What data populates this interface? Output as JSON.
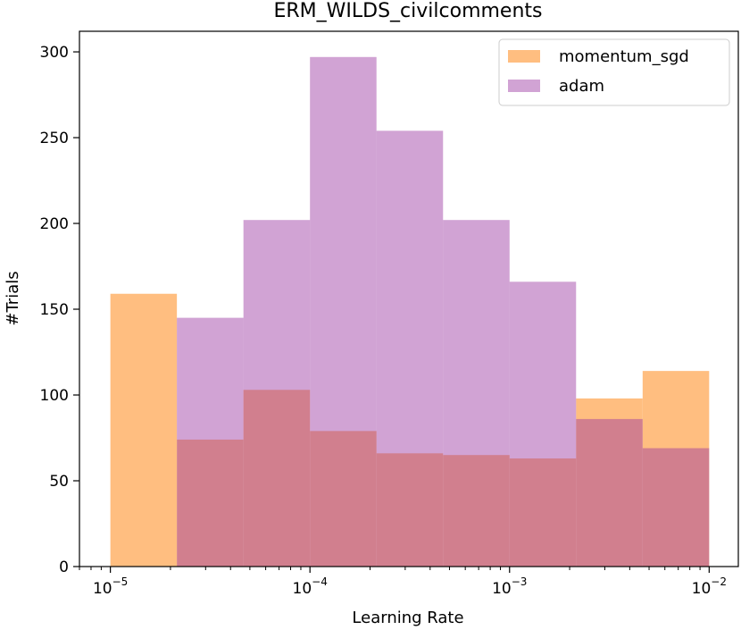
{
  "chart_data": {
    "type": "bar",
    "title": "ERM_WILDS_civilcomments",
    "xlabel": "Learning Rate",
    "ylabel": "#Trials",
    "xscale": "log",
    "xlim": [
      7e-06,
      0.014
    ],
    "ylim": [
      0,
      312
    ],
    "bin_edges": [
      1e-05,
      2.154e-05,
      4.642e-05,
      0.0001,
      0.0002154,
      0.0004642,
      0.001,
      0.002154,
      0.004642,
      0.01
    ],
    "x_ticks": [
      {
        "value": 1e-05,
        "base": "10",
        "exp": "−5"
      },
      {
        "value": 0.0001,
        "base": "10",
        "exp": "−4"
      },
      {
        "value": 0.001,
        "base": "10",
        "exp": "−3"
      },
      {
        "value": 0.01,
        "base": "10",
        "exp": "−2"
      }
    ],
    "y_ticks": [
      0,
      50,
      100,
      150,
      200,
      250,
      300
    ],
    "series": [
      {
        "name": "momentum_sgd",
        "color": "#ffbe80",
        "values": [
          159,
          74,
          103,
          79,
          66,
          65,
          63,
          98,
          114
        ]
      },
      {
        "name": "adam",
        "color": "#9932a0",
        "opacity": 0.45,
        "values": [
          0,
          145,
          202,
          297,
          254,
          202,
          166,
          86,
          69
        ]
      }
    ],
    "legend": {
      "placement": "top-right"
    },
    "grid": false
  }
}
